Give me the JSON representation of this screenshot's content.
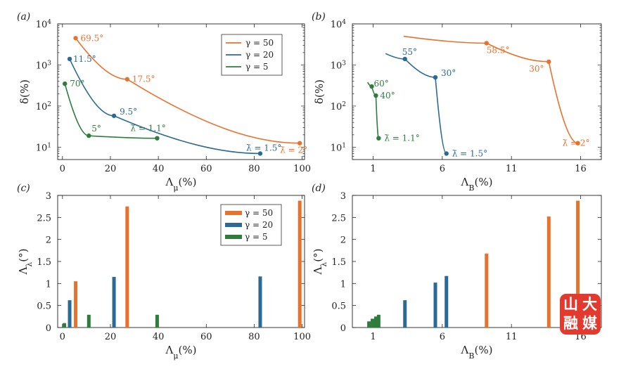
{
  "colors": {
    "g50": "#e8722c",
    "g20": "#2c6a96",
    "g5": "#2e7d3c"
  },
  "panel_labels": [
    "(a)",
    "(b)",
    "(c)",
    "(d)"
  ],
  "axis_labels": {
    "delta": "δ(%)",
    "lambda_mu": "Λμ(%)",
    "lambda_B": "ΛB(%)",
    "lambda_lambda": "Λλ(°)"
  },
  "legend": [
    "γ = 50",
    "γ = 20",
    "γ = 5"
  ],
  "logo_text": "山大融媒",
  "chart_data": [
    {
      "panel": "a",
      "type": "line",
      "xlabel": "Λμ(%)",
      "ylabel": "δ(%)",
      "xlim": [
        -2,
        101
      ],
      "ylim": [
        5,
        10000
      ],
      "yscale": "log",
      "xticks": [
        0,
        20,
        40,
        60,
        80,
        100
      ],
      "yticks": [
        "10^1",
        "10^2",
        "10^3",
        "10^4"
      ],
      "legend_position": "top-right",
      "series": [
        {
          "name": "γ = 50",
          "color": "#e8722c",
          "x": [
            5.5,
            27,
            99
          ],
          "y": [
            4500,
            450,
            12.5
          ],
          "annotations": [
            "69.5°",
            "17.5°",
            "λ̄ = 2°"
          ]
        },
        {
          "name": "γ = 20",
          "color": "#2c6a96",
          "x": [
            3,
            21.5,
            82.5
          ],
          "y": [
            1400,
            58,
            7
          ],
          "annotations": [
            "11.5°",
            "9.5°",
            "λ̄ = 1.5°"
          ]
        },
        {
          "name": "γ = 5",
          "color": "#2e7d3c",
          "x": [
            1,
            11,
            39.5
          ],
          "y": [
            350,
            19,
            16.5
          ],
          "annotations": [
            "70°",
            "5°",
            "λ̄ = 1.1°"
          ]
        }
      ]
    },
    {
      "panel": "b",
      "type": "line",
      "xlabel": "ΛB(%)",
      "ylabel": "δ(%)",
      "xlim": [
        -0.5,
        17.5
      ],
      "ylim": [
        5,
        10000
      ],
      "yscale": "log",
      "xticks": [
        1,
        6,
        11,
        16
      ],
      "yticks": [
        "10^1",
        "10^2",
        "10^3",
        "10^4"
      ],
      "series": [
        {
          "name": "γ = 50",
          "color": "#e8722c",
          "x": [
            3.2,
            9.2,
            13.7,
            15.8
          ],
          "y": [
            5000,
            3400,
            1200,
            12.5
          ],
          "annotations": [
            "58.5°",
            "30°",
            "λ̄ = 2°"
          ]
        },
        {
          "name": "γ = 20",
          "color": "#2c6a96",
          "x": [
            1.9,
            3.3,
            5.5,
            6.3
          ],
          "y": [
            1900,
            1400,
            500,
            7
          ],
          "annotations": [
            "55°",
            "30°",
            "λ̄ = 1.5°"
          ]
        },
        {
          "name": "γ = 5",
          "color": "#2e7d3c",
          "x": [
            0.6,
            0.9,
            1.2,
            1.4
          ],
          "y": [
            380,
            300,
            180,
            16.5
          ],
          "annotations": [
            "60°",
            "40°",
            "λ̄ = 1.1°"
          ]
        }
      ]
    },
    {
      "panel": "c",
      "type": "bar",
      "xlabel": "Λμ(%)",
      "ylabel": "Λλ(°)",
      "xlim": [
        -2,
        101
      ],
      "ylim": [
        0,
        3
      ],
      "xticks": [
        0,
        20,
        40,
        60,
        80,
        100
      ],
      "yticks": [
        0,
        0.5,
        1,
        1.5,
        2,
        2.5,
        3
      ],
      "legend_position": "top-right",
      "series": [
        {
          "name": "γ = 50",
          "color": "#e8722c",
          "x": [
            5.5,
            27,
            99
          ],
          "values": [
            1.05,
            2.75,
            2.88
          ]
        },
        {
          "name": "γ = 20",
          "color": "#2c6a96",
          "x": [
            3,
            21.5,
            82.5
          ],
          "values": [
            0.62,
            1.15,
            1.16
          ]
        },
        {
          "name": "γ = 5",
          "color": "#2e7d3c",
          "x": [
            0.8,
            11,
            39.5
          ],
          "values": [
            0.1,
            0.29,
            0.29
          ]
        }
      ]
    },
    {
      "panel": "d",
      "type": "bar",
      "xlabel": "ΛB(%)",
      "ylabel": "Λλ(°)",
      "xlim": [
        -0.5,
        17.5
      ],
      "ylim": [
        0,
        3
      ],
      "xticks": [
        1,
        6,
        11,
        16
      ],
      "yticks": [
        0,
        0.5,
        1,
        1.5,
        2,
        2.5,
        3
      ],
      "series": [
        {
          "name": "γ = 50",
          "color": "#e8722c",
          "x": [
            9.2,
            13.7,
            15.8
          ],
          "values": [
            1.68,
            2.52,
            2.88
          ]
        },
        {
          "name": "γ = 20",
          "color": "#2c6a96",
          "x": [
            3.3,
            5.5,
            6.3
          ],
          "values": [
            0.62,
            1.02,
            1.17
          ]
        },
        {
          "name": "γ = 5",
          "color": "#2e7d3c",
          "x": [
            0.7,
            0.95,
            1.2,
            1.4
          ],
          "values": [
            0.14,
            0.2,
            0.25,
            0.29
          ]
        }
      ]
    }
  ]
}
